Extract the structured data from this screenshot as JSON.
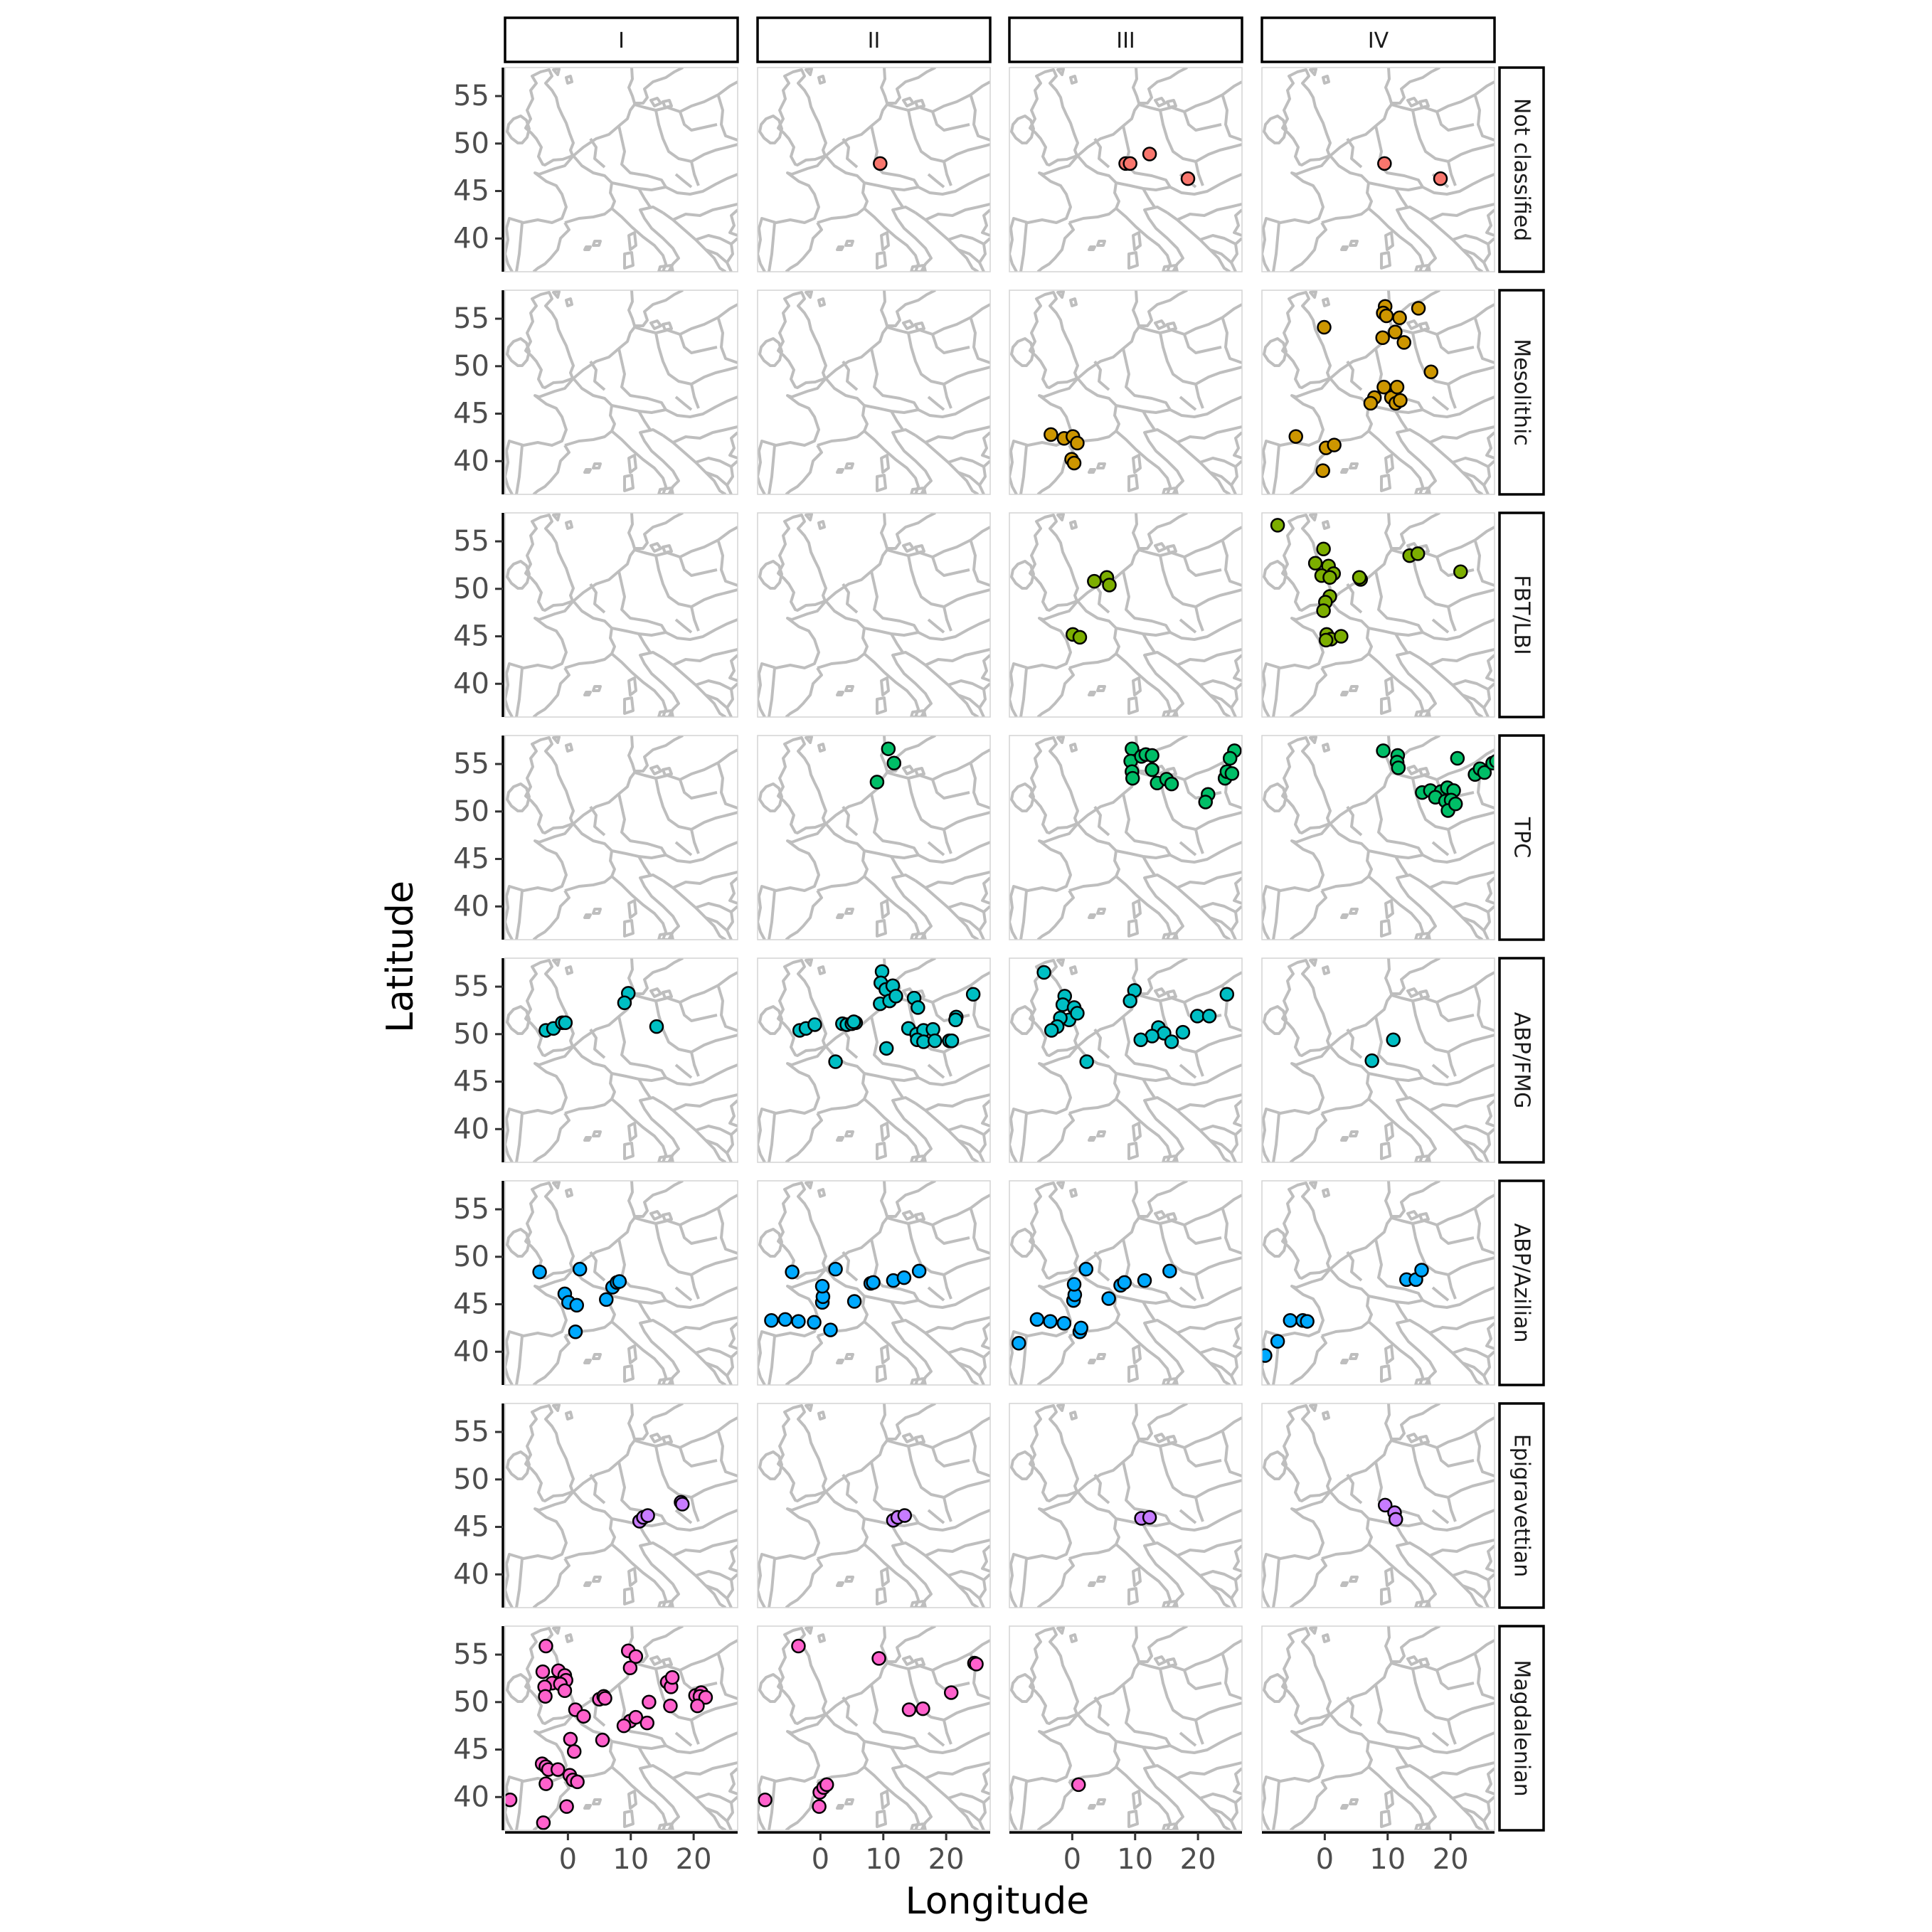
{
  "chart_data": {
    "type": "scatter",
    "facet_columns": [
      "I",
      "II",
      "III",
      "IV"
    ],
    "facet_rows": [
      "Not classified",
      "Mesolithic",
      "FBT/LBI",
      "TPC",
      "ABP/FMG",
      "ABP/Azilian",
      "Epigravettian",
      "Magdalenian"
    ],
    "xlabel": "Longitude",
    "ylabel": "Latitude",
    "xlim": [
      -10,
      27
    ],
    "ylim": [
      36.5,
      58
    ],
    "x_ticks": [
      0,
      10,
      20
    ],
    "y_ticks": [
      40,
      45,
      50,
      55
    ],
    "grid": false,
    "legend": "none",
    "background_map": "Europe coastlines and country borders (grey)",
    "colors": {
      "Not classified": "#F8766D",
      "Mesolithic": "#CD9600",
      "FBT/LBI": "#7CAE00",
      "TPC": "#00BE67",
      "ABP/FMG": "#00BFC4",
      "ABP/Azilian": "#00A9FF",
      "Epigravettian": "#C77CFF",
      "Magdalenian": "#FF61CC"
    },
    "points": {
      "Not classified": {
        "I": [],
        "II": [
          [
            9.5,
            47.9
          ]
        ],
        "III": [
          [
            8.5,
            47.9
          ],
          [
            9.2,
            47.9
          ],
          [
            12.3,
            48.9
          ],
          [
            18.4,
            46.3
          ]
        ],
        "IV": [
          [
            9.5,
            47.9
          ],
          [
            18.4,
            46.3
          ]
        ]
      },
      "Mesolithic": {
        "I": [],
        "II": [],
        "III": [
          [
            -3.4,
            42.8
          ],
          [
            -1.3,
            42.4
          ],
          [
            0.1,
            42.6
          ],
          [
            0.8,
            41.9
          ],
          [
            -0.1,
            40.2
          ],
          [
            0.3,
            39.8
          ]
        ],
        "IV": [
          [
            -0.1,
            54.1
          ],
          [
            9.6,
            56.3
          ],
          [
            9.3,
            55.6
          ],
          [
            9.8,
            55.3
          ],
          [
            11.9,
            55.1
          ],
          [
            14.9,
            56.1
          ],
          [
            9.2,
            53.0
          ],
          [
            11.2,
            53.6
          ],
          [
            12.6,
            52.5
          ],
          [
            16.9,
            49.4
          ],
          [
            7.9,
            46.7
          ],
          [
            7.3,
            46.1
          ],
          [
            9.4,
            47.8
          ],
          [
            10.6,
            46.7
          ],
          [
            11.5,
            47.8
          ],
          [
            11.3,
            46.1
          ],
          [
            12.0,
            46.4
          ],
          [
            -4.6,
            42.6
          ],
          [
            0.2,
            41.4
          ],
          [
            1.5,
            41.7
          ],
          [
            -0.3,
            39.0
          ]
        ]
      },
      "FBT/LBI": {
        "I": [],
        "II": [],
        "III": [
          [
            3.5,
            50.8
          ],
          [
            5.5,
            51.2
          ],
          [
            5.9,
            50.4
          ],
          [
            0.1,
            45.2
          ],
          [
            1.2,
            44.9
          ]
        ],
        "IV": [
          [
            -7.5,
            56.7
          ],
          [
            -1.5,
            52.7
          ],
          [
            -0.2,
            54.2
          ],
          [
            0.6,
            52.4
          ],
          [
            1.4,
            51.6
          ],
          [
            -0.5,
            51.4
          ],
          [
            0.8,
            51.2
          ],
          [
            5.7,
            51.0
          ],
          [
            5.5,
            51.2
          ],
          [
            13.5,
            53.5
          ],
          [
            14.8,
            53.7
          ],
          [
            21.6,
            51.8
          ],
          [
            0.8,
            49.2
          ],
          [
            0.1,
            48.6
          ],
          [
            -0.2,
            47.7
          ],
          [
            0.3,
            45.2
          ],
          [
            1.0,
            44.7
          ],
          [
            0.2,
            44.6
          ],
          [
            2.6,
            45.0
          ]
        ]
      },
      "TPC": {
        "I": [],
        "II": [
          [
            10.8,
            56.6
          ],
          [
            11.7,
            55.1
          ],
          [
            9.0,
            53.1
          ]
        ],
        "III": [
          [
            9.5,
            56.6
          ],
          [
            9.3,
            55.3
          ],
          [
            9.5,
            54.2
          ],
          [
            9.6,
            53.5
          ],
          [
            11.0,
            55.8
          ],
          [
            11.7,
            56.0
          ],
          [
            12.7,
            55.9
          ],
          [
            12.7,
            54.4
          ],
          [
            13.5,
            53.0
          ],
          [
            15.0,
            53.4
          ],
          [
            15.8,
            52.9
          ],
          [
            21.6,
            51.8
          ],
          [
            21.2,
            51.0
          ],
          [
            24.3,
            53.5
          ],
          [
            24.6,
            54.2
          ],
          [
            25.4,
            54.0
          ],
          [
            25.8,
            56.4
          ],
          [
            25.1,
            55.6
          ]
        ],
        "IV": [
          [
            9.3,
            56.4
          ],
          [
            11.6,
            55.9
          ],
          [
            11.5,
            55.2
          ],
          [
            11.7,
            54.6
          ],
          [
            21.1,
            55.6
          ],
          [
            23.9,
            53.9
          ],
          [
            24.7,
            54.5
          ],
          [
            25.4,
            54.1
          ],
          [
            26.7,
            55.1
          ],
          [
            27.3,
            55.3
          ],
          [
            15.5,
            52.0
          ],
          [
            16.8,
            52.2
          ],
          [
            18.5,
            52.1
          ],
          [
            19.5,
            52.5
          ],
          [
            20.5,
            52.2
          ],
          [
            17.6,
            51.5
          ],
          [
            19.2,
            51.1
          ],
          [
            20.1,
            51.2
          ],
          [
            19.6,
            50.1
          ],
          [
            20.8,
            50.8
          ]
        ]
      },
      "ABP/FMG": {
        "I": [
          [
            -3.5,
            50.4
          ],
          [
            -2.3,
            50.6
          ],
          [
            -0.9,
            51.2
          ],
          [
            -0.4,
            51.2
          ],
          [
            9.6,
            54.3
          ],
          [
            9.0,
            53.3
          ],
          [
            14.1,
            50.8
          ]
        ],
        "II": [
          [
            -3.3,
            50.4
          ],
          [
            -2.3,
            50.6
          ],
          [
            -0.9,
            51.0
          ],
          [
            3.5,
            51.1
          ],
          [
            4.2,
            51.0
          ],
          [
            5.0,
            51.1
          ],
          [
            5.6,
            51.2
          ],
          [
            5.3,
            51.3
          ],
          [
            2.4,
            47.1
          ],
          [
            9.8,
            56.6
          ],
          [
            9.6,
            55.4
          ],
          [
            10.4,
            54.7
          ],
          [
            11.5,
            55.1
          ],
          [
            9.5,
            53.2
          ],
          [
            11.0,
            53.5
          ],
          [
            12.0,
            54.0
          ],
          [
            14.9,
            53.8
          ],
          [
            15.5,
            52.8
          ],
          [
            24.3,
            54.2
          ],
          [
            21.6,
            51.8
          ],
          [
            21.5,
            51.5
          ],
          [
            14.0,
            50.6
          ],
          [
            15.3,
            50.0
          ],
          [
            16.4,
            50.4
          ],
          [
            17.9,
            50.5
          ],
          [
            15.4,
            49.4
          ],
          [
            16.4,
            49.2
          ],
          [
            18.2,
            49.3
          ],
          [
            20.5,
            49.3
          ],
          [
            20.9,
            49.3
          ],
          [
            10.5,
            48.5
          ]
        ],
        "III": [
          [
            -4.5,
            56.5
          ],
          [
            -1.2,
            54.0
          ],
          [
            -1.5,
            53.1
          ],
          [
            0.3,
            52.8
          ],
          [
            -0.5,
            51.5
          ],
          [
            -1.9,
            51.7
          ],
          [
            -2.4,
            50.8
          ],
          [
            -3.3,
            50.4
          ],
          [
            0.8,
            52.2
          ],
          [
            9.9,
            54.6
          ],
          [
            9.2,
            53.5
          ],
          [
            2.3,
            47.1
          ],
          [
            13.7,
            50.7
          ],
          [
            14.6,
            50.1
          ],
          [
            12.7,
            49.8
          ],
          [
            15.8,
            49.2
          ],
          [
            10.9,
            49.4
          ],
          [
            19.9,
            51.9
          ],
          [
            21.8,
            51.9
          ],
          [
            24.6,
            54.2
          ],
          [
            17.6,
            50.2
          ]
        ],
        "IV": [
          [
            7.5,
            47.2
          ],
          [
            10.9,
            49.4
          ]
        ]
      },
      "ABP/Azilian": {
        "I": [
          [
            -4.5,
            48.4
          ],
          [
            -0.5,
            46.1
          ],
          [
            0.1,
            45.2
          ],
          [
            1.4,
            44.9
          ],
          [
            1.9,
            48.7
          ],
          [
            7.1,
            46.8
          ],
          [
            7.8,
            47.3
          ],
          [
            8.2,
            47.4
          ],
          [
            6.1,
            45.5
          ],
          [
            1.2,
            42.1
          ]
        ],
        "II": [
          [
            -4.5,
            48.4
          ],
          [
            -7.8,
            43.3
          ],
          [
            -5.6,
            43.4
          ],
          [
            -3.5,
            43.2
          ],
          [
            -1.0,
            43.1
          ],
          [
            0.3,
            45.2
          ],
          [
            0.4,
            45.8
          ],
          [
            0.3,
            46.9
          ],
          [
            2.4,
            48.7
          ],
          [
            8.0,
            47.2
          ],
          [
            8.4,
            47.3
          ],
          [
            11.6,
            47.5
          ],
          [
            13.3,
            47.8
          ],
          [
            15.7,
            48.5
          ],
          [
            5.4,
            45.3
          ],
          [
            1.6,
            42.3
          ]
        ],
        "III": [
          [
            -8.5,
            40.9
          ],
          [
            -5.6,
            43.4
          ],
          [
            -3.5,
            43.2
          ],
          [
            -1.3,
            43.0
          ],
          [
            0.2,
            45.4
          ],
          [
            0.4,
            46.0
          ],
          [
            0.3,
            47.1
          ],
          [
            2.2,
            48.7
          ],
          [
            7.7,
            47.0
          ],
          [
            8.3,
            47.3
          ],
          [
            11.5,
            47.5
          ],
          [
            15.5,
            48.5
          ],
          [
            5.8,
            45.6
          ],
          [
            1.2,
            42.1
          ],
          [
            1.4,
            42.5
          ]
        ],
        "IV": [
          [
            -9.5,
            39.6
          ],
          [
            -7.5,
            41.1
          ],
          [
            -5.5,
            43.3
          ],
          [
            -3.5,
            43.3
          ],
          [
            -2.8,
            43.2
          ],
          [
            13.0,
            47.6
          ],
          [
            14.5,
            47.6
          ],
          [
            15.4,
            48.6
          ]
        ]
      },
      "Epigravettian": {
        "I": [
          [
            11.4,
            45.6
          ],
          [
            12.0,
            46.0
          ],
          [
            12.7,
            46.2
          ],
          [
            18.0,
            47.6
          ],
          [
            18.2,
            47.4
          ]
        ],
        "II": [
          [
            11.6,
            45.7
          ],
          [
            12.3,
            46.0
          ],
          [
            13.4,
            46.2
          ]
        ],
        "III": [
          [
            11.0,
            45.9
          ],
          [
            12.3,
            46.0
          ]
        ],
        "IV": [
          [
            9.6,
            47.3
          ],
          [
            11.1,
            46.5
          ],
          [
            11.3,
            45.8
          ]
        ]
      },
      "Magdalenian": {
        "I": [
          [
            -9.2,
            39.7
          ],
          [
            -3.5,
            55.9
          ],
          [
            -4.0,
            53.2
          ],
          [
            -1.5,
            53.3
          ],
          [
            -0.5,
            52.8
          ],
          [
            -0.3,
            52.3
          ],
          [
            -2.5,
            52.0
          ],
          [
            -1.2,
            51.9
          ],
          [
            -3.7,
            51.6
          ],
          [
            -3.6,
            50.6
          ],
          [
            -0.5,
            51.2
          ],
          [
            9.6,
            55.4
          ],
          [
            10.8,
            54.8
          ],
          [
            9.9,
            53.6
          ],
          [
            5.0,
            50.3
          ],
          [
            5.7,
            50.6
          ],
          [
            5.9,
            50.4
          ],
          [
            15.8,
            52.1
          ],
          [
            16.4,
            51.6
          ],
          [
            16.6,
            52.6
          ],
          [
            12.9,
            50.0
          ],
          [
            16.3,
            49.6
          ],
          [
            12.6,
            47.8
          ],
          [
            20.3,
            50.7
          ],
          [
            21.2,
            51.0
          ],
          [
            21.0,
            50.6
          ],
          [
            21.9,
            50.5
          ],
          [
            20.6,
            49.6
          ],
          [
            9.9,
            48.0
          ],
          [
            10.8,
            48.4
          ],
          [
            8.9,
            47.5
          ],
          [
            1.2,
            49.2
          ],
          [
            2.5,
            48.5
          ],
          [
            0.4,
            46.1
          ],
          [
            5.5,
            46.0
          ],
          [
            1.0,
            44.8
          ],
          [
            -4.1,
            43.5
          ],
          [
            -3.5,
            43.2
          ],
          [
            -3.1,
            42.9
          ],
          [
            -1.6,
            42.9
          ],
          [
            0.3,
            42.3
          ],
          [
            0.8,
            41.8
          ],
          [
            1.5,
            41.6
          ],
          [
            -3.5,
            41.4
          ],
          [
            -0.2,
            39.0
          ],
          [
            -3.9,
            37.3
          ]
        ],
        "II": [
          [
            -3.5,
            55.9
          ],
          [
            9.3,
            54.6
          ],
          [
            24.5,
            54.1
          ],
          [
            24.8,
            54.0
          ],
          [
            20.8,
            51.0
          ],
          [
            14.1,
            49.2
          ],
          [
            16.3,
            49.3
          ],
          [
            -8.8,
            39.7
          ],
          [
            -0.1,
            40.5
          ],
          [
            0.5,
            41.0
          ],
          [
            1.0,
            41.3
          ],
          [
            -0.2,
            39.0
          ]
        ],
        "III": [
          [
            1.0,
            41.3
          ]
        ],
        "IV": []
      }
    }
  }
}
